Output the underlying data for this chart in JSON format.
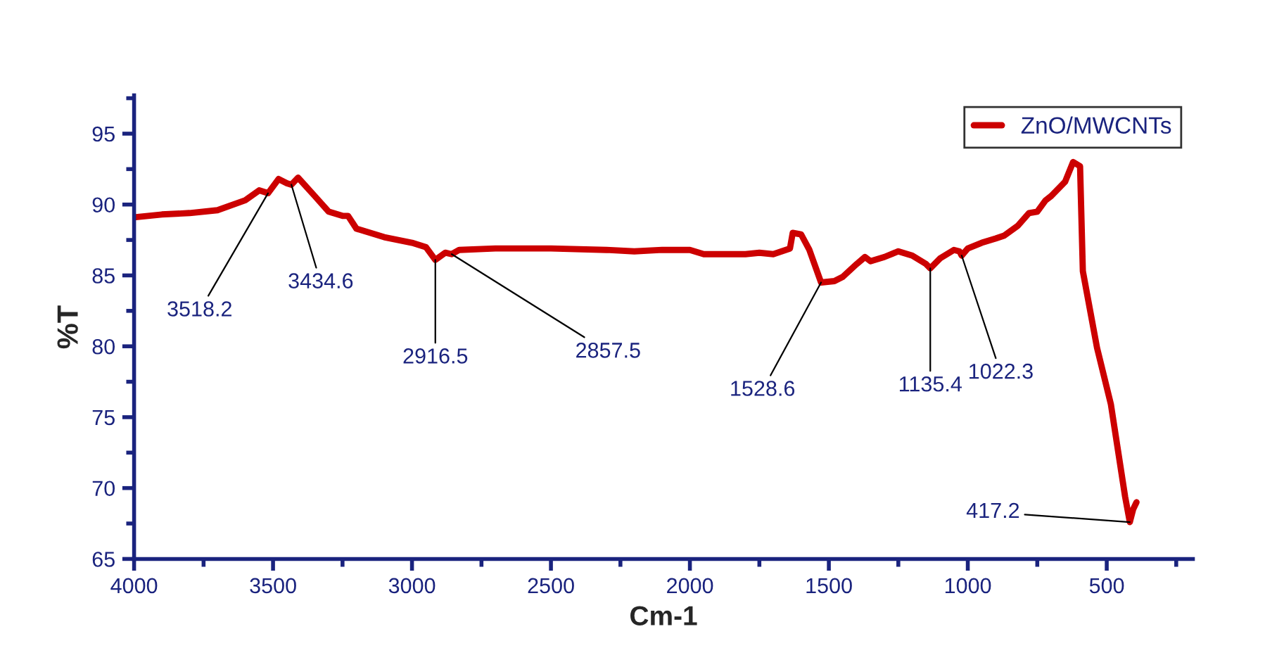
{
  "chart_data": {
    "type": "line",
    "xlabel": "Cm-1",
    "ylabel": "%T",
    "xlim": [
      4000,
      190
    ],
    "ylim": [
      65,
      97.7
    ],
    "xticks": [
      4000,
      3500,
      3000,
      2500,
      2000,
      1500,
      1000,
      500
    ],
    "yticks": [
      65,
      70,
      75,
      80,
      85,
      90,
      95
    ],
    "grid": false,
    "legend": "top right",
    "marker": "none",
    "line_style": "solid",
    "series": [
      {
        "name": "ZnO/MWCNTs",
        "color": "#cc0000",
        "x": [
          4000,
          3900,
          3800,
          3700,
          3600,
          3550,
          3518,
          3480,
          3450,
          3434,
          3410,
          3350,
          3300,
          3250,
          3230,
          3200,
          3100,
          3000,
          2950,
          2916,
          2880,
          2857,
          2830,
          2700,
          2500,
          2300,
          2200,
          2100,
          2000,
          1950,
          1800,
          1750,
          1700,
          1640,
          1630,
          1600,
          1570,
          1528,
          1480,
          1450,
          1400,
          1370,
          1350,
          1300,
          1250,
          1200,
          1150,
          1135,
          1100,
          1050,
          1030,
          1022,
          1000,
          950,
          900,
          870,
          820,
          780,
          750,
          720,
          700,
          650,
          621,
          596,
          586,
          535,
          485,
          434,
          417,
          405,
          393
        ],
        "values": [
          89.1,
          89.3,
          89.4,
          89.6,
          90.3,
          91.0,
          90.8,
          91.8,
          91.5,
          91.4,
          91.9,
          90.6,
          89.5,
          89.2,
          89.2,
          88.3,
          87.7,
          87.3,
          87.0,
          86.1,
          86.6,
          86.5,
          86.8,
          86.9,
          86.9,
          86.8,
          86.7,
          86.8,
          86.8,
          86.5,
          86.5,
          86.6,
          86.5,
          86.9,
          88.0,
          87.9,
          86.8,
          84.5,
          84.6,
          84.9,
          85.8,
          86.3,
          86.0,
          86.3,
          86.7,
          86.4,
          85.8,
          85.5,
          86.2,
          86.8,
          86.7,
          86.4,
          86.9,
          87.3,
          87.6,
          87.8,
          88.5,
          89.4,
          89.5,
          90.3,
          90.6,
          91.6,
          93.0,
          92.7,
          85.3,
          79.9,
          75.9,
          69.4,
          67.6,
          68.5,
          69.0
        ]
      }
    ],
    "annotations": [
      {
        "text": "3518.2",
        "x": 3518,
        "y": 90.8
      },
      {
        "text": "3434.6",
        "x": 3434,
        "y": 91.4
      },
      {
        "text": "2916.5",
        "x": 2916,
        "y": 86.1
      },
      {
        "text": "2857.5",
        "x": 2857,
        "y": 86.5
      },
      {
        "text": "1528.6",
        "x": 1528,
        "y": 84.5
      },
      {
        "text": "1135.4",
        "x": 1135,
        "y": 85.5
      },
      {
        "text": "1022.3",
        "x": 1022,
        "y": 86.4
      },
      {
        "text": "417.2",
        "x": 417,
        "y": 67.6
      }
    ]
  }
}
